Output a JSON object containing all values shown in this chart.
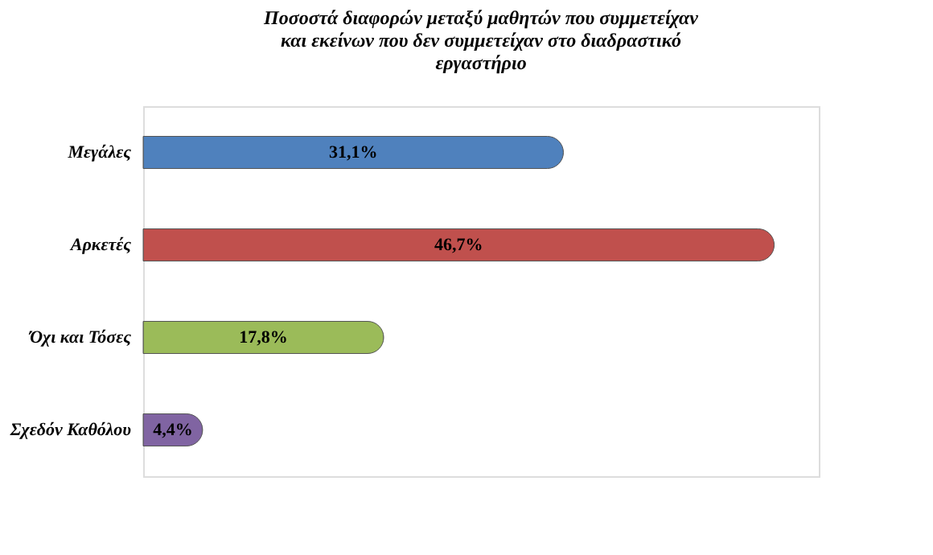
{
  "chart_data": {
    "type": "bar",
    "orientation": "horizontal",
    "title": [
      "Ποσοστά διαφορών μεταξύ μαθητών που συμμετείχαν",
      "και εκείνων που δεν συμμετείχαν στο διαδραστικό",
      "εργαστήριο"
    ],
    "categories": [
      "Μεγάλες",
      "Αρκετές",
      "Όχι και Τόσες",
      "Σχεδόν Καθόλου"
    ],
    "values": [
      31.1,
      46.7,
      17.8,
      4.4
    ],
    "value_labels": [
      "31,1%",
      "46,7%",
      "17,8%",
      "4,4%"
    ],
    "colors": [
      "#4f81bd",
      "#c0504d",
      "#9bbb59",
      "#8064a2"
    ],
    "xlim": [
      0,
      50
    ],
    "tick_labels": "y",
    "grid": false
  }
}
